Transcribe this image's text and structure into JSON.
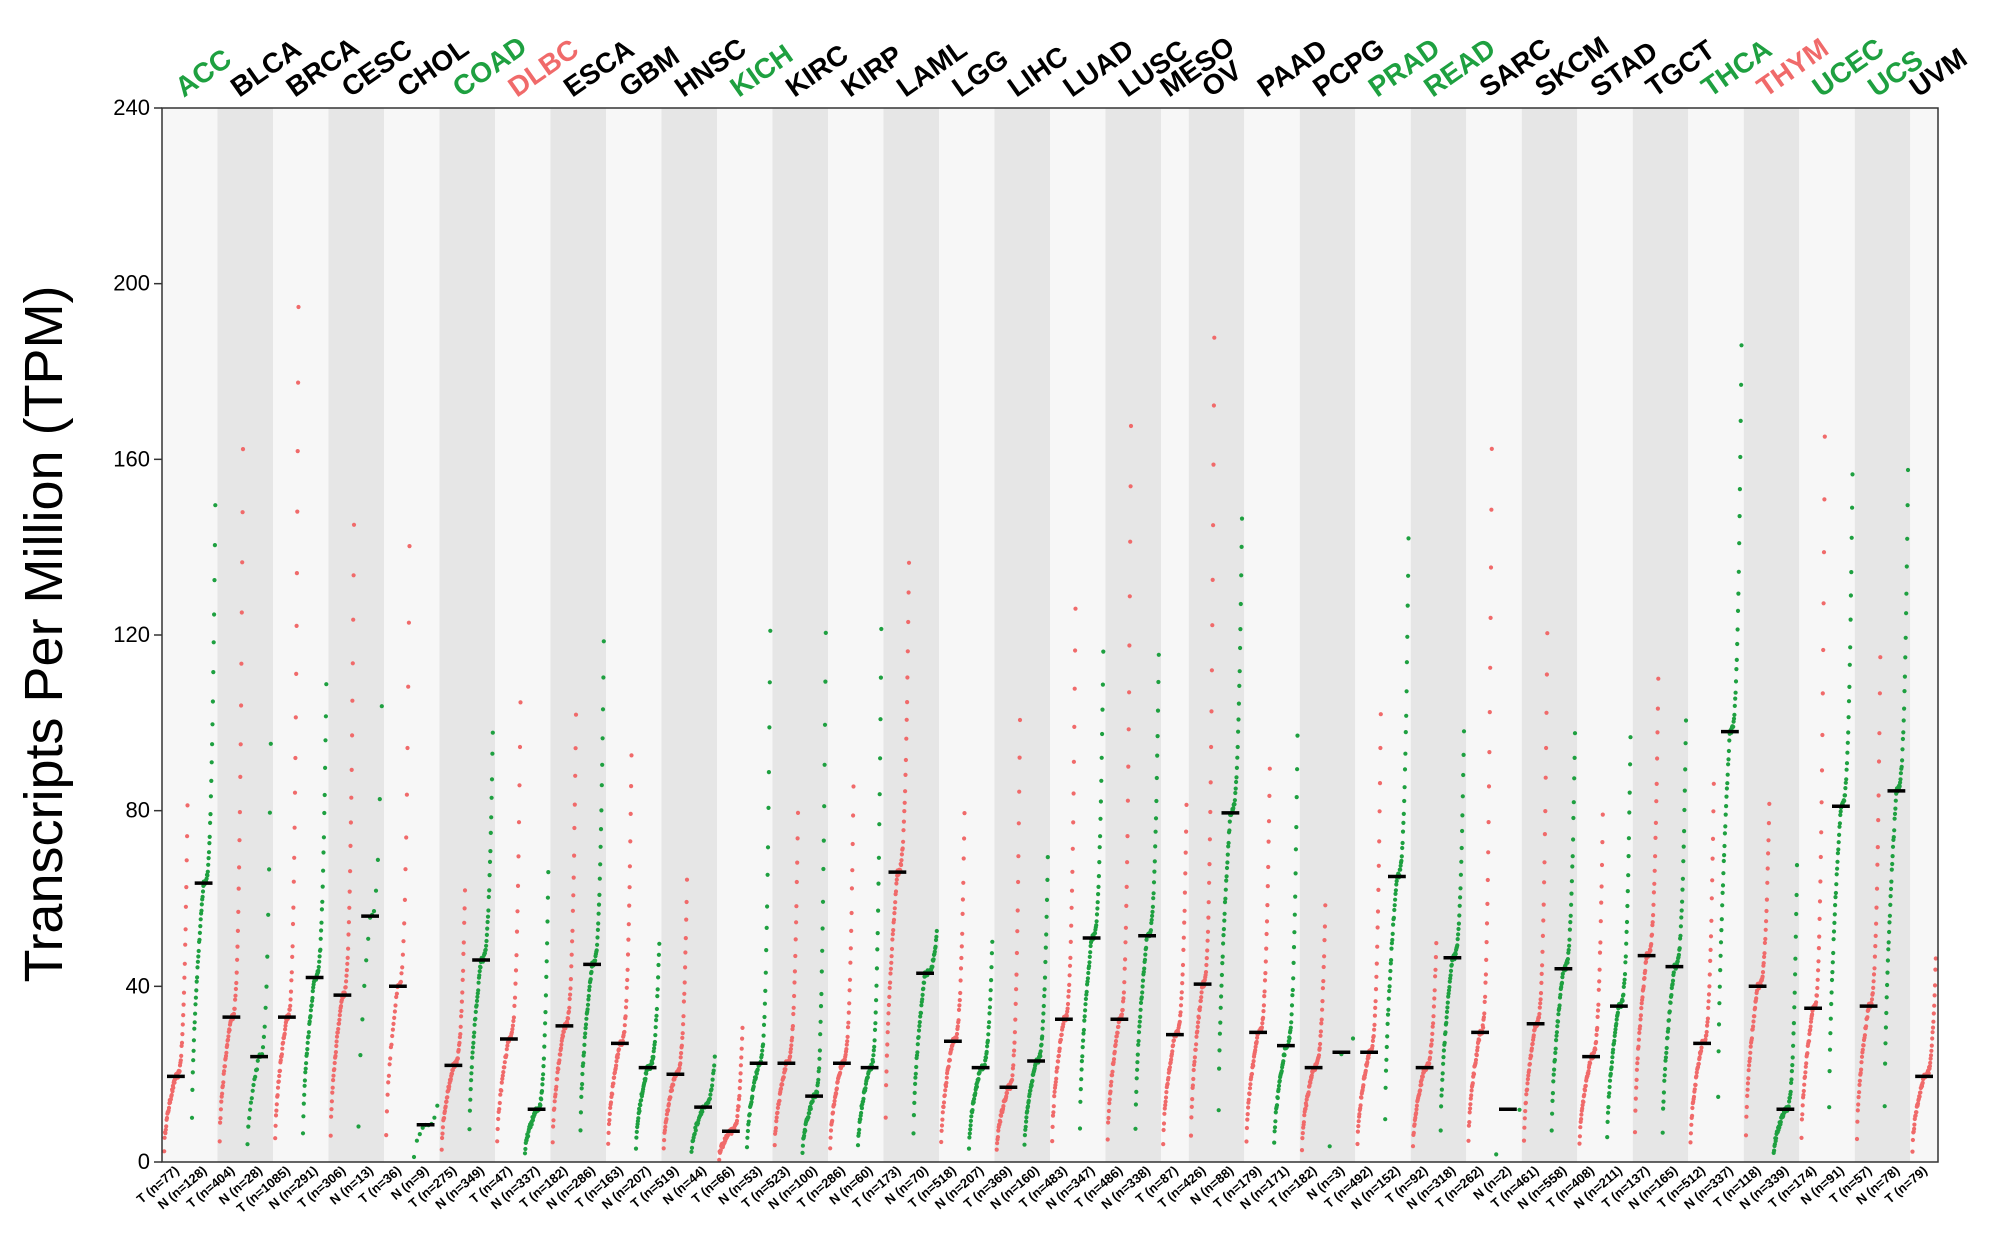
{
  "chart_data": {
    "type": "scatter",
    "title": "",
    "xlabel": "",
    "ylabel": "Transcripts Per Million (TPM)",
    "ylim": [
      0,
      240
    ],
    "yticks": [
      0,
      40,
      80,
      120,
      160,
      200,
      240
    ],
    "colors": {
      "tumor": "#f06a6a",
      "normal": "#1ea040",
      "median": "#000000",
      "band": "#e6e6e6",
      "band_alt": "#f7f7f7"
    },
    "cancers": [
      {
        "name": "ACC",
        "color": "#1ea040",
        "groups": [
          {
            "label": "T (n=77)",
            "type": "T",
            "median": 19.5,
            "max": 81
          },
          {
            "label": "N (n=128)",
            "type": "N",
            "median": 63.5,
            "max": 150
          }
        ]
      },
      {
        "name": "BLCA",
        "color": "#000000",
        "groups": [
          {
            "label": "T (n=404)",
            "type": "T",
            "median": 33,
            "max": 162
          },
          {
            "label": "N (n=28)",
            "type": "N",
            "median": 24,
            "max": 95
          }
        ]
      },
      {
        "name": "BRCA",
        "color": "#000000",
        "groups": [
          {
            "label": "T (n=1085)",
            "type": "T",
            "median": 33,
            "max": 195
          },
          {
            "label": "N (n=291)",
            "type": "N",
            "median": 42,
            "max": 109
          }
        ]
      },
      {
        "name": "CESC",
        "color": "#000000",
        "groups": [
          {
            "label": "T (n=306)",
            "type": "T",
            "median": 38,
            "max": 145
          },
          {
            "label": "N (n=13)",
            "type": "N",
            "median": 56,
            "max": 104
          }
        ]
      },
      {
        "name": "CHOL",
        "color": "#000000",
        "groups": [
          {
            "label": "T (n=36)",
            "type": "T",
            "median": 40,
            "max": 140
          },
          {
            "label": "N (n=9)",
            "type": "N",
            "median": 8.5,
            "max": 13
          }
        ]
      },
      {
        "name": "COAD",
        "color": "#1ea040",
        "groups": [
          {
            "label": "T (n=275)",
            "type": "T",
            "median": 22,
            "max": 62
          },
          {
            "label": "N (n=349)",
            "type": "N",
            "median": 46,
            "max": 98
          }
        ]
      },
      {
        "name": "DLBC",
        "color": "#f06a6a",
        "groups": [
          {
            "label": "T (n=47)",
            "type": "T",
            "median": 28,
            "max": 105
          },
          {
            "label": "N (n=337)",
            "type": "N",
            "median": 12,
            "max": 66
          }
        ]
      },
      {
        "name": "ESCA",
        "color": "#000000",
        "groups": [
          {
            "label": "T (n=182)",
            "type": "T",
            "median": 31,
            "max": 102
          },
          {
            "label": "N (n=286)",
            "type": "N",
            "median": 45,
            "max": 118
          }
        ]
      },
      {
        "name": "GBM",
        "color": "#000000",
        "groups": [
          {
            "label": "T (n=163)",
            "type": "T",
            "median": 27,
            "max": 92
          },
          {
            "label": "N (n=207)",
            "type": "N",
            "median": 21.5,
            "max": 50
          }
        ]
      },
      {
        "name": "HNSC",
        "color": "#000000",
        "groups": [
          {
            "label": "T (n=519)",
            "type": "T",
            "median": 20,
            "max": 64
          },
          {
            "label": "N (n=44)",
            "type": "N",
            "median": 12.5,
            "max": 24
          }
        ]
      },
      {
        "name": "KICH",
        "color": "#1ea040",
        "groups": [
          {
            "label": "T (n=66)",
            "type": "T",
            "median": 7,
            "max": 30
          },
          {
            "label": "N (n=53)",
            "type": "N",
            "median": 22.5,
            "max": 121
          }
        ]
      },
      {
        "name": "KIRC",
        "color": "#000000",
        "groups": [
          {
            "label": "T (n=523)",
            "type": "T",
            "median": 22.5,
            "max": 80
          },
          {
            "label": "N (n=100)",
            "type": "N",
            "median": 15,
            "max": 121
          }
        ]
      },
      {
        "name": "KIRP",
        "color": "#000000",
        "groups": [
          {
            "label": "T (n=286)",
            "type": "T",
            "median": 22.5,
            "max": 85
          },
          {
            "label": "N (n=60)",
            "type": "N",
            "median": 21.5,
            "max": 121
          }
        ]
      },
      {
        "name": "LAML",
        "color": "#000000",
        "groups": [
          {
            "label": "T (n=173)",
            "type": "T",
            "median": 66,
            "max": 137
          },
          {
            "label": "N (n=70)",
            "type": "N",
            "median": 43,
            "max": 52
          }
        ]
      },
      {
        "name": "LGG",
        "color": "#000000",
        "groups": [
          {
            "label": "T (n=518)",
            "type": "T",
            "median": 27.5,
            "max": 79
          },
          {
            "label": "N (n=207)",
            "type": "N",
            "median": 21.5,
            "max": 50
          }
        ]
      },
      {
        "name": "LIHC",
        "color": "#000000",
        "groups": [
          {
            "label": "T (n=369)",
            "type": "T",
            "median": 17,
            "max": 101
          },
          {
            "label": "N (n=160)",
            "type": "N",
            "median": 23,
            "max": 69
          }
        ]
      },
      {
        "name": "LUAD",
        "color": "#000000",
        "groups": [
          {
            "label": "T (n=483)",
            "type": "T",
            "median": 32.5,
            "max": 126
          },
          {
            "label": "N (n=347)",
            "type": "N",
            "median": 51,
            "max": 116
          }
        ]
      },
      {
        "name": "LUSC",
        "color": "#000000",
        "groups": [
          {
            "label": "T (n=486)",
            "type": "T",
            "median": 32.5,
            "max": 168
          },
          {
            "label": "N (n=338)",
            "type": "N",
            "median": 51.5,
            "max": 116
          }
        ]
      },
      {
        "name": "MESO",
        "color": "#000000",
        "groups": [
          {
            "label": "T (n=87)",
            "type": "T",
            "median": 29,
            "max": 81
          }
        ]
      },
      {
        "name": "OV",
        "color": "#000000",
        "groups": [
          {
            "label": "T (n=426)",
            "type": "T",
            "median": 40.5,
            "max": 188
          },
          {
            "label": "N (n=88)",
            "type": "N",
            "median": 79.5,
            "max": 147
          }
        ]
      },
      {
        "name": "PAAD",
        "color": "#000000",
        "groups": [
          {
            "label": "T (n=179)",
            "type": "T",
            "median": 29.5,
            "max": 90
          },
          {
            "label": "N (n=171)",
            "type": "N",
            "median": 26.5,
            "max": 97
          }
        ]
      },
      {
        "name": "PCPG",
        "color": "#000000",
        "groups": [
          {
            "label": "T (n=182)",
            "type": "T",
            "median": 21.5,
            "max": 58
          },
          {
            "label": "N (n=3)",
            "type": "N",
            "median": 25,
            "max": 28
          }
        ]
      },
      {
        "name": "PRAD",
        "color": "#1ea040",
        "groups": [
          {
            "label": "T (n=492)",
            "type": "T",
            "median": 25,
            "max": 102
          },
          {
            "label": "N (n=152)",
            "type": "N",
            "median": 65,
            "max": 142
          }
        ]
      },
      {
        "name": "READ",
        "color": "#1ea040",
        "groups": [
          {
            "label": "T (n=92)",
            "type": "T",
            "median": 21.5,
            "max": 50
          },
          {
            "label": "N (n=318)",
            "type": "N",
            "median": 46.5,
            "max": 98
          }
        ]
      },
      {
        "name": "SARC",
        "color": "#000000",
        "groups": [
          {
            "label": "T (n=262)",
            "type": "T",
            "median": 29.5,
            "max": 162
          },
          {
            "label": "N (n=2)",
            "type": "N",
            "median": 12,
            "max": 12
          }
        ]
      },
      {
        "name": "SKCM",
        "color": "#000000",
        "groups": [
          {
            "label": "T (n=461)",
            "type": "T",
            "median": 31.5,
            "max": 120
          },
          {
            "label": "N (n=558)",
            "type": "N",
            "median": 44,
            "max": 98
          }
        ]
      },
      {
        "name": "STAD",
        "color": "#000000",
        "groups": [
          {
            "label": "T (n=408)",
            "type": "T",
            "median": 24,
            "max": 79
          },
          {
            "label": "N (n=211)",
            "type": "N",
            "median": 35.5,
            "max": 97
          }
        ]
      },
      {
        "name": "TGCT",
        "color": "#000000",
        "groups": [
          {
            "label": "T (n=137)",
            "type": "T",
            "median": 47,
            "max": 110
          },
          {
            "label": "N (n=165)",
            "type": "N",
            "median": 44.5,
            "max": 101
          }
        ]
      },
      {
        "name": "THCA",
        "color": "#1ea040",
        "groups": [
          {
            "label": "T (n=512)",
            "type": "T",
            "median": 27,
            "max": 86
          },
          {
            "label": "N (n=337)",
            "type": "N",
            "median": 98,
            "max": 186
          }
        ]
      },
      {
        "name": "THYM",
        "color": "#f06a6a",
        "groups": [
          {
            "label": "T (n=118)",
            "type": "T",
            "median": 40,
            "max": 82
          },
          {
            "label": "N (n=339)",
            "type": "N",
            "median": 12,
            "max": 67
          }
        ]
      },
      {
        "name": "UCEC",
        "color": "#1ea040",
        "groups": [
          {
            "label": "T (n=174)",
            "type": "T",
            "median": 35,
            "max": 165
          },
          {
            "label": "N (n=91)",
            "type": "N",
            "median": 81,
            "max": 157
          }
        ]
      },
      {
        "name": "UCS",
        "color": "#1ea040",
        "groups": [
          {
            "label": "T (n=57)",
            "type": "T",
            "median": 35.5,
            "max": 115
          },
          {
            "label": "N (n=78)",
            "type": "N",
            "median": 84.5,
            "max": 157
          }
        ]
      },
      {
        "name": "UVM",
        "color": "#000000",
        "groups": [
          {
            "label": "T (n=79)",
            "type": "T",
            "median": 19.5,
            "max": 46
          }
        ]
      }
    ]
  }
}
